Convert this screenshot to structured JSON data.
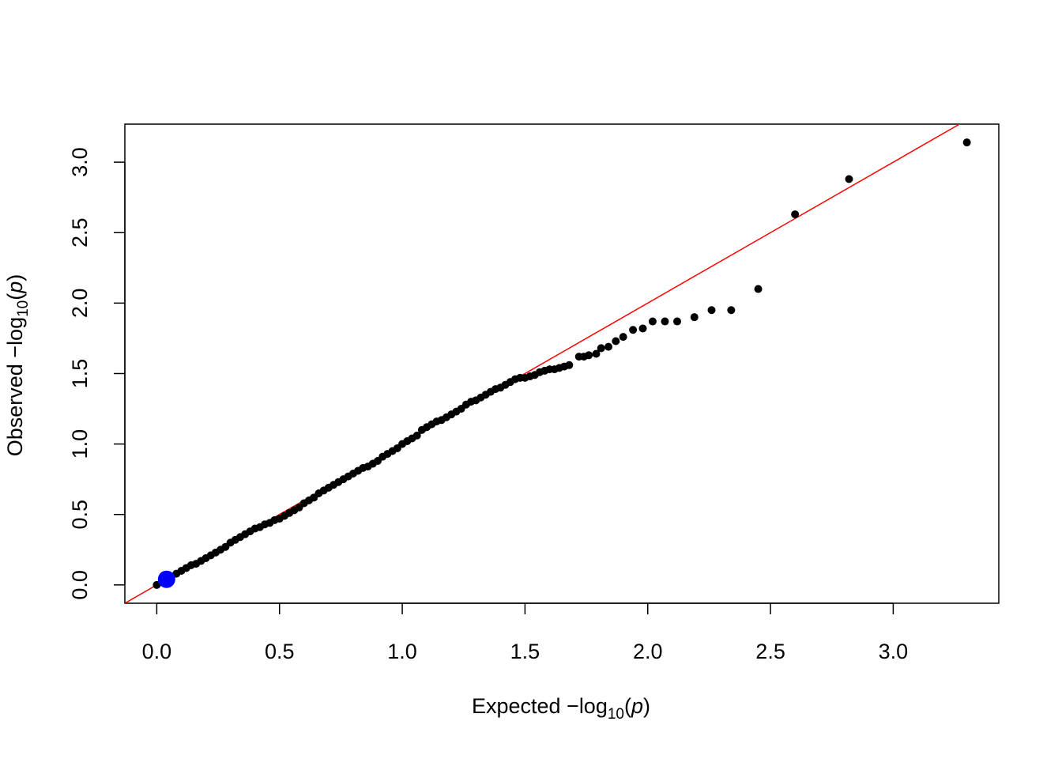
{
  "chart_data": {
    "type": "scatter",
    "xlabel": "Expected  −log10(p)",
    "ylabel": "Observed  −log10(p)",
    "xlabel_parts": {
      "prefix": "Expected  −log",
      "sub": "10",
      "open": "(",
      "var": "p",
      "close": ")"
    },
    "ylabel_parts": {
      "prefix": "Observed  −log",
      "sub": "10",
      "open": "(",
      "var": "p",
      "close": ")"
    },
    "xlim": [
      -0.13,
      3.43
    ],
    "ylim": [
      -0.13,
      3.27
    ],
    "x_ticks": [
      "0.0",
      "0.5",
      "1.0",
      "1.5",
      "2.0",
      "2.5",
      "3.0"
    ],
    "y_ticks": [
      "0.0",
      "0.5",
      "1.0",
      "1.5",
      "2.0",
      "2.5",
      "3.0"
    ],
    "x_tick_values": [
      0,
      0.5,
      1,
      1.5,
      2,
      2.5,
      3
    ],
    "y_tick_values": [
      0,
      0.5,
      1,
      1.5,
      2,
      2.5,
      3
    ],
    "grid": false,
    "reference_line": {
      "slope": 1,
      "intercept": 0,
      "color": "#ff0000"
    },
    "point_color": "#000000",
    "highlight": {
      "x": 0.04,
      "y": 0.04,
      "color": "#0000ff"
    },
    "series": [
      {
        "points": [
          [
            0.0,
            0.0
          ],
          [
            0.02,
            0.02
          ],
          [
            0.04,
            0.04
          ],
          [
            0.06,
            0.06
          ],
          [
            0.08,
            0.08
          ],
          [
            0.1,
            0.1
          ],
          [
            0.12,
            0.12
          ],
          [
            0.14,
            0.14
          ],
          [
            0.16,
            0.15
          ],
          [
            0.18,
            0.17
          ],
          [
            0.2,
            0.19
          ],
          [
            0.22,
            0.21
          ],
          [
            0.24,
            0.23
          ],
          [
            0.26,
            0.25
          ],
          [
            0.28,
            0.27
          ],
          [
            0.3,
            0.3
          ],
          [
            0.32,
            0.32
          ],
          [
            0.34,
            0.34
          ],
          [
            0.36,
            0.36
          ],
          [
            0.38,
            0.38
          ],
          [
            0.4,
            0.4
          ],
          [
            0.42,
            0.41
          ],
          [
            0.44,
            0.43
          ],
          [
            0.46,
            0.44
          ],
          [
            0.48,
            0.46
          ],
          [
            0.5,
            0.47
          ],
          [
            0.52,
            0.49
          ],
          [
            0.54,
            0.51
          ],
          [
            0.56,
            0.53
          ],
          [
            0.58,
            0.55
          ],
          [
            0.6,
            0.58
          ],
          [
            0.62,
            0.6
          ],
          [
            0.64,
            0.62
          ],
          [
            0.66,
            0.65
          ],
          [
            0.68,
            0.67
          ],
          [
            0.7,
            0.69
          ],
          [
            0.72,
            0.71
          ],
          [
            0.74,
            0.73
          ],
          [
            0.76,
            0.75
          ],
          [
            0.78,
            0.77
          ],
          [
            0.8,
            0.79
          ],
          [
            0.82,
            0.81
          ],
          [
            0.84,
            0.83
          ],
          [
            0.86,
            0.84
          ],
          [
            0.88,
            0.86
          ],
          [
            0.9,
            0.88
          ],
          [
            0.92,
            0.91
          ],
          [
            0.94,
            0.93
          ],
          [
            0.96,
            0.95
          ],
          [
            0.98,
            0.97
          ],
          [
            1.0,
            1.0
          ],
          [
            1.02,
            1.02
          ],
          [
            1.04,
            1.04
          ],
          [
            1.06,
            1.06
          ],
          [
            1.08,
            1.1
          ],
          [
            1.1,
            1.12
          ],
          [
            1.12,
            1.14
          ],
          [
            1.14,
            1.16
          ],
          [
            1.16,
            1.17
          ],
          [
            1.18,
            1.19
          ],
          [
            1.2,
            1.21
          ],
          [
            1.22,
            1.23
          ],
          [
            1.24,
            1.25
          ],
          [
            1.26,
            1.28
          ],
          [
            1.28,
            1.3
          ],
          [
            1.3,
            1.31
          ],
          [
            1.32,
            1.33
          ],
          [
            1.34,
            1.35
          ],
          [
            1.36,
            1.37
          ],
          [
            1.38,
            1.39
          ],
          [
            1.4,
            1.4
          ],
          [
            1.42,
            1.42
          ],
          [
            1.44,
            1.44
          ],
          [
            1.46,
            1.46
          ],
          [
            1.48,
            1.47
          ],
          [
            1.5,
            1.47
          ],
          [
            1.52,
            1.48
          ],
          [
            1.54,
            1.49
          ],
          [
            1.56,
            1.51
          ],
          [
            1.58,
            1.52
          ],
          [
            1.6,
            1.53
          ],
          [
            1.62,
            1.53
          ],
          [
            1.64,
            1.54
          ],
          [
            1.66,
            1.55
          ],
          [
            1.68,
            1.56
          ],
          [
            1.72,
            1.62
          ],
          [
            1.74,
            1.62
          ],
          [
            1.76,
            1.63
          ],
          [
            1.79,
            1.64
          ],
          [
            1.81,
            1.68
          ],
          [
            1.84,
            1.69
          ],
          [
            1.87,
            1.73
          ],
          [
            1.9,
            1.76
          ],
          [
            1.94,
            1.81
          ],
          [
            1.98,
            1.82
          ],
          [
            2.02,
            1.87
          ],
          [
            2.07,
            1.87
          ],
          [
            2.12,
            1.87
          ],
          [
            2.19,
            1.9
          ],
          [
            2.26,
            1.95
          ],
          [
            2.34,
            1.95
          ],
          [
            2.45,
            2.1
          ],
          [
            2.6,
            2.63
          ],
          [
            2.82,
            2.88
          ],
          [
            3.3,
            3.14
          ]
        ]
      }
    ]
  }
}
